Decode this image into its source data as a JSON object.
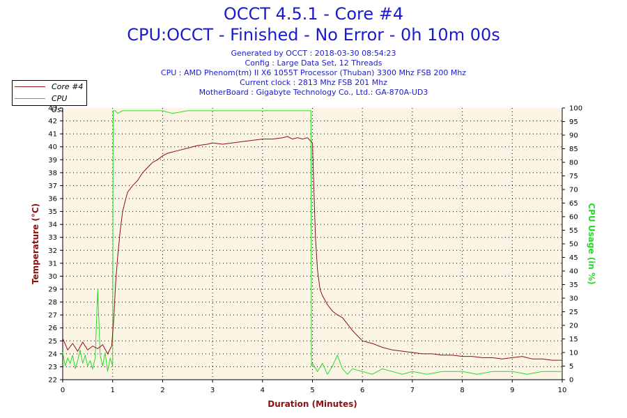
{
  "header": {
    "title": "OCCT 4.5.1 - Core #4",
    "subtitle": "CPU:OCCT - Finished - No Error - 0h 10m 00s",
    "info_lines": [
      "Generated by OCCT : 2018-03-30 08:54:23",
      "Config : Large Data Set, 12 Threads",
      "CPU : AMD Phenom(tm) II X6 1055T Processor (Thuban) 3300 Mhz FSB 200 Mhz",
      "Current clock : 2813 Mhz FSB 201 Mhz",
      "MotherBoard : Gigabyte Technology Co., Ltd.: GA-870A-UD3"
    ]
  },
  "colors": {
    "temperature": "#8b1010",
    "cpu_usage": "#22dd22",
    "plot_bg": "#fcf5e6",
    "info_text": "#1a1ad0"
  },
  "chart_data": {
    "type": "line",
    "title": "OCCT 4.5.1 - Core #4",
    "xlabel": "Duration (Minutes)",
    "ylabel": "Temperature (°C)",
    "y2label": "CPU Usage (in %)",
    "xlim": [
      0,
      10
    ],
    "ylim": [
      22,
      43
    ],
    "y2lim": [
      0,
      100
    ],
    "x_ticks": [
      0,
      1,
      2,
      3,
      4,
      5,
      6,
      7,
      8,
      9,
      10
    ],
    "y_ticks": [
      22,
      23,
      24,
      25,
      26,
      27,
      28,
      29,
      30,
      31,
      32,
      33,
      34,
      35,
      36,
      37,
      38,
      39,
      40,
      41,
      42,
      43
    ],
    "y2_ticks": [
      0,
      5,
      10,
      15,
      20,
      25,
      30,
      35,
      40,
      45,
      50,
      55,
      60,
      65,
      70,
      75,
      80,
      85,
      90,
      95,
      100
    ],
    "grid": true,
    "legend_position": "top-left",
    "series": [
      {
        "name": "Core #4",
        "axis": "left",
        "x": [
          0,
          0.1,
          0.2,
          0.3,
          0.4,
          0.5,
          0.6,
          0.7,
          0.8,
          0.9,
          0.98,
          1.02,
          1.06,
          1.1,
          1.15,
          1.2,
          1.25,
          1.3,
          1.4,
          1.5,
          1.6,
          1.7,
          1.8,
          1.9,
          2.0,
          2.1,
          2.2,
          2.3,
          2.5,
          2.7,
          2.9,
          3.0,
          3.2,
          3.4,
          3.6,
          3.8,
          4.0,
          4.2,
          4.4,
          4.5,
          4.6,
          4.7,
          4.8,
          4.9,
          4.95,
          5.0,
          5.03,
          5.06,
          5.1,
          5.15,
          5.2,
          5.3,
          5.4,
          5.5,
          5.6,
          5.7,
          5.8,
          5.9,
          6.0,
          6.2,
          6.4,
          6.6,
          6.8,
          7.0,
          7.2,
          7.4,
          7.6,
          7.8,
          8.0,
          8.2,
          8.4,
          8.6,
          8.8,
          9.0,
          9.2,
          9.4,
          9.6,
          9.8,
          10.0
        ],
        "values": [
          25.2,
          24.3,
          24.8,
          24.2,
          24.9,
          24.3,
          24.6,
          24.4,
          24.7,
          24.0,
          24.6,
          26.5,
          29.5,
          31.5,
          33.5,
          35.0,
          35.8,
          36.5,
          37.0,
          37.4,
          38.0,
          38.4,
          38.8,
          39.0,
          39.3,
          39.5,
          39.6,
          39.7,
          39.9,
          40.1,
          40.2,
          40.3,
          40.2,
          40.3,
          40.4,
          40.5,
          40.6,
          40.6,
          40.7,
          40.8,
          40.6,
          40.7,
          40.6,
          40.7,
          40.5,
          40.3,
          36.5,
          33.0,
          30.5,
          29.0,
          28.5,
          27.8,
          27.3,
          27.0,
          26.8,
          26.3,
          25.8,
          25.4,
          25.0,
          24.8,
          24.5,
          24.3,
          24.2,
          24.1,
          24.0,
          24.0,
          23.9,
          23.9,
          23.8,
          23.8,
          23.7,
          23.7,
          23.6,
          23.7,
          23.8,
          23.6,
          23.6,
          23.5,
          23.5
        ]
      },
      {
        "name": "CPU Usage",
        "axis": "right",
        "x": [
          0,
          0.05,
          0.1,
          0.15,
          0.2,
          0.25,
          0.3,
          0.35,
          0.4,
          0.45,
          0.5,
          0.55,
          0.6,
          0.65,
          0.7,
          0.75,
          0.8,
          0.85,
          0.9,
          0.95,
          1.0,
          1.01,
          1.05,
          1.1,
          1.2,
          1.3,
          1.4,
          1.5,
          1.6,
          1.8,
          2.0,
          2.2,
          2.5,
          2.8,
          3.0,
          3.3,
          3.6,
          3.9,
          4.2,
          4.5,
          4.8,
          4.97,
          4.98,
          5.0,
          5.1,
          5.2,
          5.3,
          5.4,
          5.5,
          5.6,
          5.7,
          5.8,
          6.0,
          6.2,
          6.4,
          6.6,
          6.8,
          7.0,
          7.3,
          7.6,
          8.0,
          8.3,
          8.6,
          9.0,
          9.3,
          9.6,
          10.0
        ],
        "values": [
          10,
          5,
          8,
          6,
          9,
          4,
          7,
          11,
          6,
          9,
          5,
          7,
          4,
          8,
          33,
          9,
          5,
          10,
          3,
          8,
          5,
          99,
          99,
          98,
          99,
          99,
          99,
          99,
          99,
          99,
          99,
          98,
          99,
          99,
          99,
          99,
          99,
          99,
          99,
          99,
          99,
          99,
          5,
          6,
          3,
          6,
          2,
          5,
          9,
          4,
          2,
          4,
          3,
          2,
          4,
          3,
          2,
          3,
          2,
          3,
          3,
          2,
          3,
          3,
          2,
          3,
          3
        ]
      }
    ]
  }
}
